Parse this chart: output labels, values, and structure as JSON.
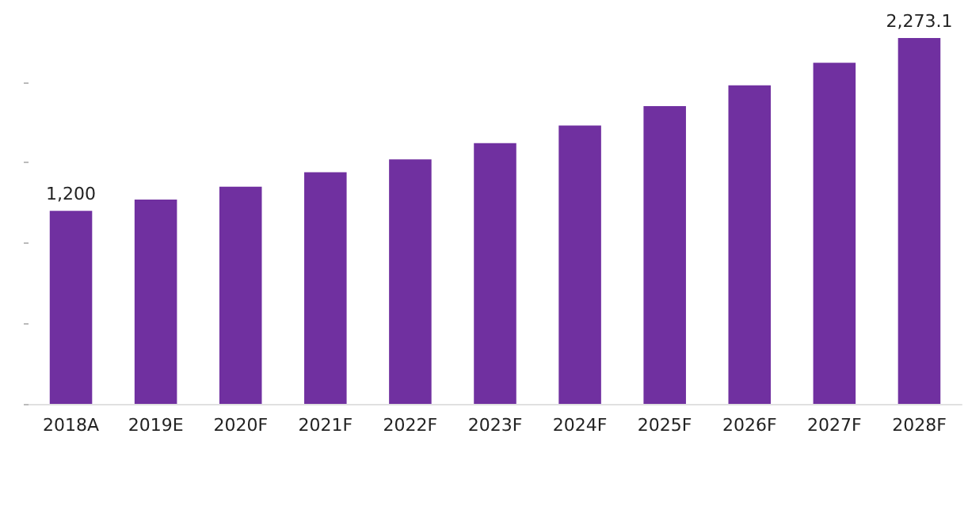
{
  "chart_data": {
    "type": "bar",
    "categories": [
      "2018A",
      "2019E",
      "2020F",
      "2021F",
      "2022F",
      "2023F",
      "2024F",
      "2025F",
      "2026F",
      "2027F",
      "2028F"
    ],
    "values": [
      1200,
      1270,
      1350,
      1440,
      1520,
      1620,
      1730,
      1850,
      1980,
      2120,
      2273.1
    ],
    "value_labels": [
      "1,200",
      null,
      null,
      null,
      null,
      null,
      null,
      null,
      null,
      null,
      "2,273.1"
    ],
    "color": "#7030a0",
    "yticks": [
      {
        "value": 0,
        "label": null
      },
      {
        "value": 500,
        "label": null
      },
      {
        "value": 1000,
        "label": null
      },
      {
        "value": 1500,
        "label": null
      },
      {
        "value": 2000,
        "label": null
      }
    ],
    "tick_labels": "x",
    "grid": false
  }
}
